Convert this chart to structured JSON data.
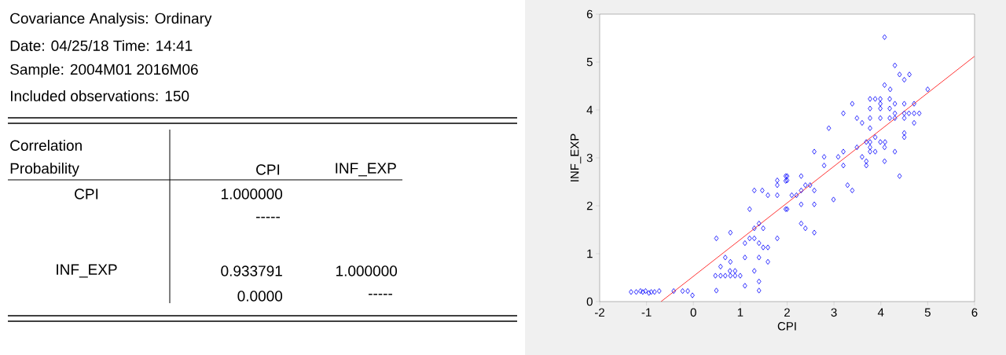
{
  "chart_data": {
    "type": "scatter",
    "xlabel": "CPI",
    "ylabel": "INF_EXP",
    "xlim": [
      -2,
      6
    ],
    "ylim": [
      0,
      6
    ],
    "xticks": [
      -2,
      -1,
      0,
      1,
      2,
      3,
      4,
      5,
      6
    ],
    "yticks": [
      0,
      1,
      2,
      3,
      4,
      5,
      6
    ],
    "series": [
      {
        "color": "#0000ff",
        "marker": "diamond",
        "x": [
          -1.33,
          -1.22,
          -1.13,
          -1.08,
          -1.02,
          -0.95,
          -0.9,
          -0.83,
          -0.73,
          -0.42,
          -0.23,
          -0.12,
          -0.02,
          0.49,
          0.49,
          0.79,
          0.58,
          0.68,
          0.79,
          0.47,
          0.58,
          0.68,
          0.79,
          0.89,
          1.0,
          0.78,
          0.89,
          1.1,
          1.1,
          1.1,
          1.2,
          1.3,
          1.2,
          1.3,
          1.4,
          1.4,
          1.49,
          1.49,
          1.59,
          1.3,
          1.4,
          1.4,
          1.4,
          1.59,
          1.3,
          1.47,
          1.59,
          1.79,
          1.79,
          1.79,
          1.79,
          1.97,
          1.97,
          1.97,
          4.08,
          4.3,
          4.4,
          4.61,
          4.5,
          4.08,
          4.2,
          5.0,
          3.77,
          3.88,
          3.99,
          4.19,
          3.39,
          3.99,
          4.3,
          4.5,
          4.71,
          3.77,
          3.99,
          4.19,
          3.2,
          4.3,
          4.5,
          4.6,
          4.71,
          4.82,
          3.49,
          3.77,
          3.99,
          4.19,
          4.3,
          4.5,
          3.6,
          4.71,
          2.89,
          3.77,
          4.5,
          4.5,
          3.88,
          3.69,
          3.77,
          3.99,
          4.09,
          3.49,
          3.77,
          4.08,
          3.77,
          3.88,
          4.3,
          2.58,
          3.2,
          2.79,
          3.09,
          3.6,
          3.69,
          4.08,
          2.79,
          3.2,
          3.69,
          4.4,
          2.0,
          2.3,
          2.0,
          2.39,
          2.49,
          2.3,
          2.58,
          3.29,
          3.39,
          2.1,
          2.2,
          2.99,
          2.3,
          2.58,
          2.0,
          2.3,
          2.39,
          2.58
        ],
        "values": [
          0.2,
          0.2,
          0.22,
          0.2,
          0.22,
          0.18,
          0.2,
          0.2,
          0.22,
          0.22,
          0.22,
          0.22,
          0.13,
          0.23,
          1.32,
          1.44,
          0.73,
          0.92,
          0.83,
          0.54,
          0.54,
          0.54,
          0.54,
          0.54,
          0.54,
          0.64,
          0.64,
          0.92,
          0.33,
          1.22,
          1.32,
          1.32,
          1.93,
          1.53,
          1.63,
          1.22,
          1.53,
          1.13,
          1.13,
          0.64,
          0.92,
          0.42,
          0.23,
          0.83,
          2.32,
          2.32,
          2.22,
          2.22,
          2.43,
          2.53,
          1.32,
          1.93,
          2.52,
          2.62,
          5.52,
          4.93,
          4.74,
          4.74,
          4.63,
          4.52,
          4.43,
          4.43,
          4.23,
          4.23,
          4.23,
          4.23,
          4.13,
          4.13,
          4.13,
          4.13,
          4.13,
          4.03,
          4.03,
          4.03,
          3.93,
          3.93,
          3.93,
          3.93,
          3.93,
          3.93,
          3.83,
          3.83,
          3.83,
          3.83,
          3.83,
          3.83,
          3.73,
          3.73,
          3.62,
          3.62,
          3.52,
          3.43,
          3.43,
          3.33,
          3.33,
          3.33,
          3.33,
          3.22,
          3.22,
          3.22,
          3.13,
          3.13,
          3.13,
          3.13,
          3.13,
          3.02,
          3.02,
          3.02,
          2.93,
          2.93,
          2.84,
          2.84,
          2.84,
          2.62,
          2.62,
          2.62,
          2.53,
          2.43,
          2.43,
          2.32,
          2.32,
          2.43,
          2.32,
          2.22,
          2.22,
          2.13,
          2.03,
          2.03,
          1.93,
          1.63,
          1.53,
          1.44
        ]
      },
      {
        "type": "line",
        "color": "#ff0000",
        "marker": "none",
        "x": [
          -0.69,
          6
        ],
        "values": [
          0,
          5.12
        ]
      }
    ],
    "annotations": [
      "Covariance Analysis: Ordinary",
      "Date: 04/25/18   Time: 14:41",
      "Sample: 2004M01 2016M06",
      "Included observations: 150",
      "Correlation",
      "Probability",
      "CPI",
      "INF_EXP",
      "CPI",
      "1.000000",
      "-----",
      "INF_EXP",
      "0.933791",
      "1.000000",
      "0.0000",
      "-----"
    ]
  }
}
